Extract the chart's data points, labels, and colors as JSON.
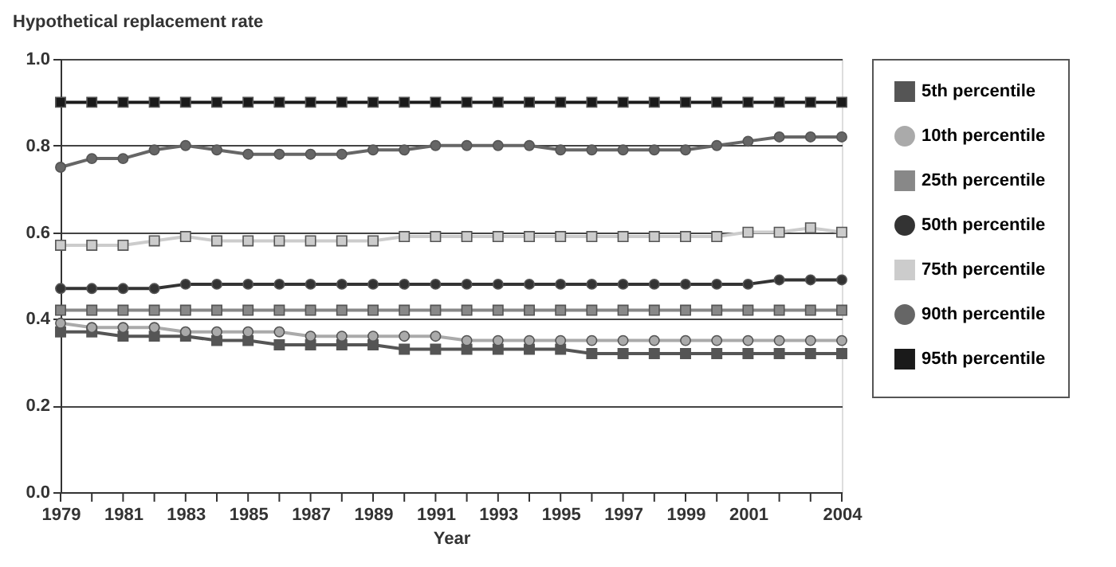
{
  "chart_data": {
    "type": "line",
    "ylabel": "Hypothetical replacement rate",
    "xlabel": "Year",
    "x": [
      1979,
      1980,
      1981,
      1982,
      1983,
      1984,
      1985,
      1986,
      1987,
      1988,
      1989,
      1990,
      1991,
      1992,
      1993,
      1994,
      1995,
      1996,
      1997,
      1998,
      1999,
      2000,
      2001,
      2002,
      2003,
      2004
    ],
    "xlim": [
      1979,
      2004
    ],
    "xticks": [
      1979,
      {
        "value": 1980,
        "label": null
      },
      1981,
      {
        "value": 1982,
        "label": null
      },
      1983,
      {
        "value": 1984,
        "label": null
      },
      1985,
      {
        "value": 1986,
        "label": null
      },
      1987,
      {
        "value": 1988,
        "label": null
      },
      1989,
      {
        "value": 1990,
        "label": null
      },
      1991,
      {
        "value": 1992,
        "label": null
      },
      1993,
      {
        "value": 1994,
        "label": null
      },
      1995,
      {
        "value": 1996,
        "label": null
      },
      1997,
      {
        "value": 1998,
        "label": null
      },
      1999,
      {
        "value": 2000,
        "label": null
      },
      2001,
      {
        "value": 2002,
        "label": null
      },
      {
        "value": 2003,
        "label": null
      },
      2004
    ],
    "ylim": [
      0,
      1.0
    ],
    "yticks": [
      {
        "value": 0,
        "label": "0.0"
      },
      0.2,
      0.4,
      0.6,
      0.8,
      {
        "value": 1,
        "label": "1.0"
      }
    ],
    "grid": "y",
    "legend": "right",
    "line_style": "solid",
    "series": [
      {
        "name": "5th percentile",
        "color": "#555555",
        "marker": "square",
        "values": [
          0.37,
          0.37,
          0.36,
          0.36,
          0.36,
          0.35,
          0.35,
          0.34,
          0.34,
          0.34,
          0.34,
          0.33,
          0.33,
          0.33,
          0.33,
          0.33,
          0.33,
          0.32,
          0.32,
          0.32,
          0.32,
          0.32,
          0.32,
          0.32,
          0.32,
          0.32
        ]
      },
      {
        "name": "10th percentile",
        "color": "#aaaaaa",
        "marker": "circle",
        "values": [
          0.39,
          0.38,
          0.38,
          0.38,
          0.37,
          0.37,
          0.37,
          0.37,
          0.36,
          0.36,
          0.36,
          0.36,
          0.36,
          0.35,
          0.35,
          0.35,
          0.35,
          0.35,
          0.35,
          0.35,
          0.35,
          0.35,
          0.35,
          0.35,
          0.35,
          0.35
        ]
      },
      {
        "name": "25th percentile",
        "color": "#888888",
        "marker": "square",
        "values": [
          0.42,
          0.42,
          0.42,
          0.42,
          0.42,
          0.42,
          0.42,
          0.42,
          0.42,
          0.42,
          0.42,
          0.42,
          0.42,
          0.42,
          0.42,
          0.42,
          0.42,
          0.42,
          0.42,
          0.42,
          0.42,
          0.42,
          0.42,
          0.42,
          0.42,
          0.42
        ]
      },
      {
        "name": "50th percentile",
        "color": "#333333",
        "marker": "circle",
        "values": [
          0.47,
          0.47,
          0.47,
          0.47,
          0.48,
          0.48,
          0.48,
          0.48,
          0.48,
          0.48,
          0.48,
          0.48,
          0.48,
          0.48,
          0.48,
          0.48,
          0.48,
          0.48,
          0.48,
          0.48,
          0.48,
          0.48,
          0.48,
          0.49,
          0.49,
          0.49
        ]
      },
      {
        "name": "75th percentile",
        "color": "#cccccc",
        "marker": "square",
        "values": [
          0.57,
          0.57,
          0.57,
          0.58,
          0.59,
          0.58,
          0.58,
          0.58,
          0.58,
          0.58,
          0.58,
          0.59,
          0.59,
          0.59,
          0.59,
          0.59,
          0.59,
          0.59,
          0.59,
          0.59,
          0.59,
          0.59,
          0.6,
          0.6,
          0.61,
          0.6
        ]
      },
      {
        "name": "90th percentile",
        "color": "#666666",
        "marker": "circle",
        "values": [
          0.75,
          0.77,
          0.77,
          0.79,
          0.8,
          0.79,
          0.78,
          0.78,
          0.78,
          0.78,
          0.79,
          0.79,
          0.8,
          0.8,
          0.8,
          0.8,
          0.79,
          0.79,
          0.79,
          0.79,
          0.79,
          0.8,
          0.81,
          0.82,
          0.82,
          0.82
        ]
      },
      {
        "name": "95th percentile",
        "color": "#1a1a1a",
        "marker": "square",
        "values": [
          0.9,
          0.9,
          0.9,
          0.9,
          0.9,
          0.9,
          0.9,
          0.9,
          0.9,
          0.9,
          0.9,
          0.9,
          0.9,
          0.9,
          0.9,
          0.9,
          0.9,
          0.9,
          0.9,
          0.9,
          0.9,
          0.9,
          0.9,
          0.9,
          0.9,
          0.9
        ]
      }
    ]
  }
}
